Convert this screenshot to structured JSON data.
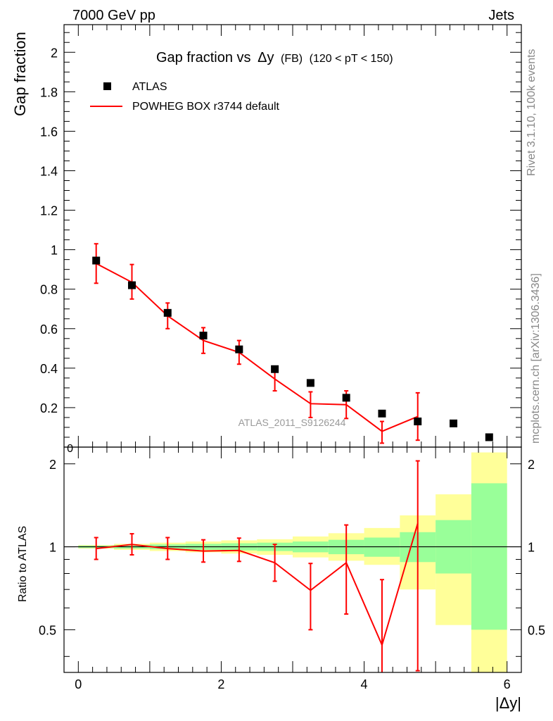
{
  "header": {
    "left": "7000 GeV pp",
    "right": "Jets"
  },
  "side_labels": {
    "rivet": "Rivet 3.1.10,  100k events",
    "mcplots": "mcplots.cern.ch [arXiv:1306.3436]"
  },
  "watermark": "ATLAS_2011_S9126244",
  "colors": {
    "data_marker": "#000000",
    "mc_line": "#ff0000",
    "band_inner": "#99ff99",
    "band_outer": "#ffff99"
  },
  "chart_data": [
    {
      "type": "scatter",
      "title": "Gap fraction vs",
      "title_delta": "Δy",
      "title_tag": "(FB)",
      "title_cut": "(120 < pT < 150)",
      "ylabel": "Gap fraction",
      "xlim": [
        -0.2,
        6.2
      ],
      "ylim": [
        0,
        2.14
      ],
      "yticks": [
        0.2,
        0.4,
        0.6,
        0.8,
        1,
        1.2,
        1.4,
        1.6,
        1.8,
        2
      ],
      "ytick_labels": [
        "0.2",
        "0.4",
        "0.6",
        "0.8",
        "1",
        "1.2",
        "1.4",
        "1.6",
        "1.8",
        "2"
      ],
      "y_bottom_label": "0",
      "legend": [
        "ATLAS",
        "POWHEG BOX r3744 default"
      ],
      "series": [
        {
          "name": "ATLAS",
          "kind": "marker",
          "x": [
            0.25,
            0.75,
            1.25,
            1.75,
            2.25,
            2.75,
            3.25,
            3.75,
            4.25,
            4.75,
            5.25,
            5.75
          ],
          "y": [
            0.945,
            0.82,
            0.68,
            0.565,
            0.495,
            0.395,
            0.325,
            0.25,
            0.17,
            0.13,
            0.12,
            0.05
          ]
        },
        {
          "name": "POWHEG BOX r3744 default",
          "kind": "line",
          "x": [
            0.25,
            0.75,
            1.25,
            1.75,
            2.25,
            2.75,
            3.25,
            3.75,
            4.25,
            4.75
          ],
          "y": [
            0.93,
            0.835,
            0.665,
            0.54,
            0.48,
            0.345,
            0.22,
            0.215,
            0.08,
            0.155
          ],
          "err_low": [
            0.1,
            0.085,
            0.065,
            0.065,
            0.06,
            0.06,
            0.07,
            0.07,
            0.06,
            0.12
          ],
          "err_high": [
            0.1,
            0.09,
            0.065,
            0.065,
            0.06,
            0.06,
            0.06,
            0.07,
            0.05,
            0.12
          ]
        }
      ]
    },
    {
      "type": "line",
      "ylabel": "Ratio to ATLAS",
      "xlabel": "|Δy|",
      "xlim": [
        -0.2,
        6.2
      ],
      "ylim": [
        0.35,
        2.3
      ],
      "log_y": true,
      "yticks": [
        0.5,
        1,
        2
      ],
      "ytick_labels": [
        "0.5",
        "1",
        "2"
      ],
      "xticks": [
        0,
        2,
        4,
        6
      ],
      "xtick_labels": [
        "0",
        "2",
        "4",
        "6"
      ],
      "bands": {
        "x_edges": [
          0,
          0.5,
          1,
          1.5,
          2,
          2.5,
          3,
          3.5,
          4,
          4.5,
          5,
          5.5,
          6
        ],
        "inner_low": [
          0.99,
          0.985,
          0.98,
          0.975,
          0.97,
          0.965,
          0.955,
          0.94,
          0.92,
          0.88,
          0.8,
          0.5
        ],
        "inner_high": [
          1.01,
          1.015,
          1.02,
          1.025,
          1.03,
          1.035,
          1.045,
          1.06,
          1.08,
          1.13,
          1.25,
          1.7
        ],
        "outer_low": [
          0.985,
          0.975,
          0.965,
          0.955,
          0.945,
          0.935,
          0.915,
          0.89,
          0.86,
          0.7,
          0.52,
          0.35
        ],
        "outer_high": [
          1.015,
          1.025,
          1.035,
          1.045,
          1.055,
          1.065,
          1.09,
          1.12,
          1.17,
          1.3,
          1.55,
          2.2
        ]
      },
      "series": [
        {
          "name": "POWHEG BOX r3744 default",
          "x": [
            0.25,
            0.75,
            1.25,
            1.75,
            2.25,
            2.75,
            3.25,
            3.75,
            4.25,
            4.75
          ],
          "y": [
            0.985,
            1.02,
            0.985,
            0.965,
            0.97,
            0.875,
            0.695,
            0.875,
            0.44,
            1.215
          ],
          "err_low": [
            0.085,
            0.085,
            0.085,
            0.085,
            0.085,
            0.125,
            0.195,
            0.305,
            0.09,
            0.86
          ],
          "err_high": [
            0.095,
            0.095,
            0.095,
            0.095,
            0.105,
            0.145,
            0.175,
            0.325,
            0.32,
            0.835
          ]
        }
      ]
    }
  ]
}
